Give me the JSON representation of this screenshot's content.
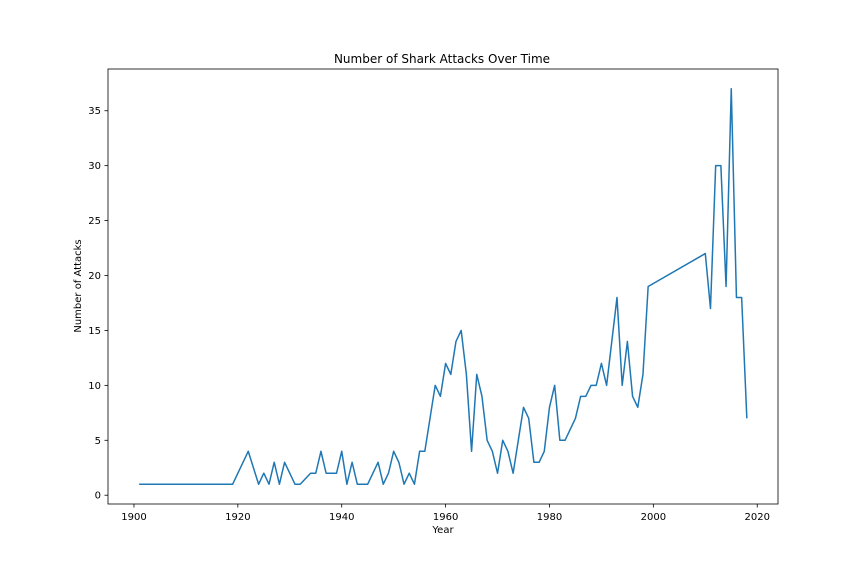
{
  "chart_data": {
    "type": "line",
    "title": "Number of Shark Attacks Over Time",
    "xlabel": "Year",
    "ylabel": "Number of Attacks",
    "xlim": [
      1895,
      2024
    ],
    "ylim": [
      -0.8,
      38.8
    ],
    "xticks": [
      1900,
      1920,
      1940,
      1960,
      1980,
      2000,
      2020
    ],
    "yticks": [
      0,
      5,
      10,
      15,
      20,
      25,
      30,
      35
    ],
    "grid": false,
    "color": "#1f77b4",
    "x": [
      1901,
      1919,
      1922,
      1924,
      1925,
      1926,
      1927,
      1928,
      1929,
      1931,
      1932,
      1934,
      1935,
      1936,
      1937,
      1938,
      1939,
      1940,
      1941,
      1942,
      1943,
      1945,
      1947,
      1948,
      1949,
      1950,
      1951,
      1952,
      1953,
      1954,
      1955,
      1956,
      1957,
      1958,
      1959,
      1960,
      1961,
      1962,
      1963,
      1964,
      1965,
      1966,
      1967,
      1968,
      1969,
      1970,
      1971,
      1972,
      1973,
      1974,
      1975,
      1976,
      1977,
      1978,
      1979,
      1980,
      1981,
      1982,
      1983,
      1985,
      1986,
      1987,
      1988,
      1989,
      1990,
      1991,
      1993,
      1994,
      1995,
      1996,
      1997,
      1998,
      1999,
      2010,
      2011,
      2012,
      2013,
      2014,
      2015,
      2016,
      2017,
      2018
    ],
    "y": [
      1,
      1,
      4,
      1,
      2,
      1,
      3,
      1,
      3,
      1,
      1,
      2,
      2,
      4,
      2,
      2,
      2,
      4,
      1,
      3,
      1,
      1,
      3,
      1,
      2,
      4,
      3,
      1,
      2,
      1,
      4,
      4,
      7,
      10,
      9,
      12,
      11,
      14,
      15,
      11,
      4,
      11,
      9,
      5,
      4,
      2,
      5,
      4,
      2,
      5,
      8,
      7,
      3,
      3,
      4,
      8,
      10,
      5,
      5,
      7,
      9,
      9,
      10,
      10,
      12,
      10,
      18,
      10,
      14,
      9,
      8,
      11,
      19,
      22,
      17,
      30,
      30,
      19,
      37,
      18,
      18,
      7
    ]
  }
}
